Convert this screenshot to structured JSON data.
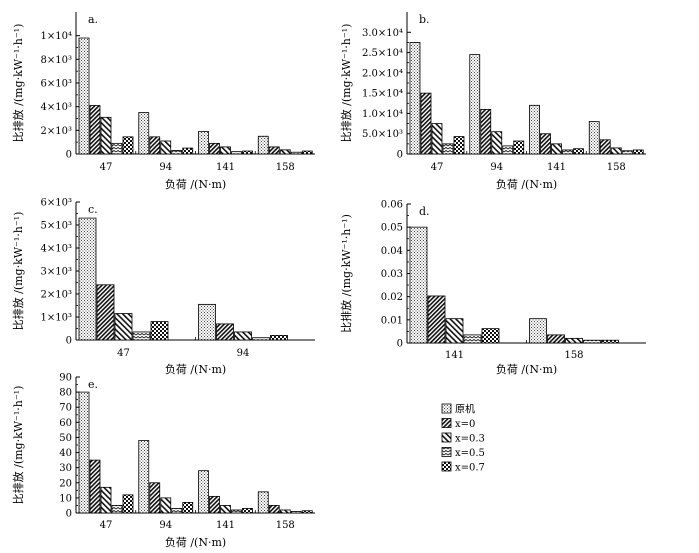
{
  "figure_title": "",
  "legend": {
    "entries": [
      "原机",
      "x=0",
      "x=0.3",
      "x=0.5",
      "x=0.7"
    ]
  },
  "chart_data": [
    {
      "type": "bar",
      "panel_label": "a.",
      "title": "",
      "xlabel": "负荷 /(N·m)",
      "ylabel": "比排放 /(mg·kW⁻¹·h⁻¹)",
      "categories": [
        "47",
        "94",
        "141",
        "158"
      ],
      "ylim": [
        0,
        12000
      ],
      "yticks": [
        0,
        2000,
        4000,
        6000,
        8000,
        10000
      ],
      "ytick_labels": [
        "0",
        "2×10³",
        "4×10³",
        "6×10³",
        "8×10³",
        "1×10⁴"
      ],
      "series": [
        {
          "name": "原机",
          "values": [
            9800,
            3500,
            1900,
            1500
          ]
        },
        {
          "name": "x=0",
          "values": [
            4100,
            1450,
            900,
            600
          ]
        },
        {
          "name": "x=0.3",
          "values": [
            3100,
            1100,
            600,
            350
          ]
        },
        {
          "name": "x=0.5",
          "values": [
            900,
            300,
            200,
            150
          ]
        },
        {
          "name": "x=0.7",
          "values": [
            1450,
            500,
            250,
            250
          ]
        }
      ]
    },
    {
      "type": "bar",
      "panel_label": "b.",
      "title": "",
      "xlabel": "负荷 /(N·m)",
      "ylabel": "比排放 /(mg·kW⁻¹·h⁻¹)",
      "categories": [
        "47",
        "94",
        "141",
        "158"
      ],
      "ylim": [
        0,
        35000
      ],
      "yticks": [
        0,
        5000,
        10000,
        15000,
        20000,
        25000,
        30000
      ],
      "ytick_labels": [
        "0",
        "5.0×10³",
        "1.0×10⁴",
        "1.5×10⁴",
        "2.0×10⁴",
        "2.5×10⁴",
        "3.0×10⁴"
      ],
      "series": [
        {
          "name": "原机",
          "values": [
            27500,
            24500,
            12000,
            8000
          ]
        },
        {
          "name": "x=0",
          "values": [
            15000,
            11000,
            5000,
            3500
          ]
        },
        {
          "name": "x=0.3",
          "values": [
            7500,
            5500,
            2500,
            1500
          ]
        },
        {
          "name": "x=0.5",
          "values": [
            2500,
            2000,
            1000,
            800
          ]
        },
        {
          "name": "x=0.7",
          "values": [
            4300,
            3200,
            1300,
            1000
          ]
        }
      ]
    },
    {
      "type": "bar",
      "panel_label": "c.",
      "title": "",
      "xlabel": "负荷 /(N·m)",
      "ylabel": "比排放 /(mg·kW⁻¹·h⁻¹)",
      "categories": [
        "47",
        "94"
      ],
      "ylim": [
        0,
        6000
      ],
      "yticks": [
        0,
        1000,
        2000,
        3000,
        4000,
        5000,
        6000
      ],
      "ytick_labels": [
        "0",
        "1×10³",
        "2×10³",
        "3×10³",
        "4×10³",
        "5×10³",
        "6×10³"
      ],
      "series": [
        {
          "name": "原机",
          "values": [
            5300,
            1550
          ]
        },
        {
          "name": "x=0",
          "values": [
            2400,
            700
          ]
        },
        {
          "name": "x=0.3",
          "values": [
            1150,
            350
          ]
        },
        {
          "name": "x=0.5",
          "values": [
            350,
            100
          ]
        },
        {
          "name": "x=0.7",
          "values": [
            800,
            200
          ]
        }
      ]
    },
    {
      "type": "bar",
      "panel_label": "d.",
      "title": "",
      "xlabel": "负荷 /(N·m)",
      "ylabel": "比排放 /(mg·kW⁻¹·h⁻¹)",
      "categories": [
        "141",
        "158"
      ],
      "ylim": [
        0,
        0.06
      ],
      "yticks": [
        0,
        0.01,
        0.02,
        0.03,
        0.04,
        0.05,
        0.06
      ],
      "ytick_labels": [
        "0",
        "0.01",
        "0.02",
        "0.03",
        "0.04",
        "0.05",
        "0.06"
      ],
      "series": [
        {
          "name": "原机",
          "values": [
            0.05,
            0.0105
          ]
        },
        {
          "name": "x=0",
          "values": [
            0.0203,
            0.0035
          ]
        },
        {
          "name": "x=0.3",
          "values": [
            0.0105,
            0.002
          ]
        },
        {
          "name": "x=0.5",
          "values": [
            0.0035,
            0.0012
          ]
        },
        {
          "name": "x=0.7",
          "values": [
            0.0062,
            0.0012
          ]
        }
      ]
    },
    {
      "type": "bar",
      "panel_label": "e.",
      "title": "",
      "xlabel": "负荷 /(N·m)",
      "ylabel": "比排放 /(mg·kW⁻¹·h⁻¹)",
      "categories": [
        "47",
        "94",
        "141",
        "158"
      ],
      "ylim": [
        0,
        90
      ],
      "yticks": [
        0,
        10,
        20,
        30,
        40,
        50,
        60,
        70,
        80,
        90
      ],
      "ytick_labels": [
        "0",
        "10",
        "20",
        "30",
        "40",
        "50",
        "60",
        "70",
        "80",
        "90"
      ],
      "series": [
        {
          "name": "原机",
          "values": [
            80,
            48,
            28,
            14
          ]
        },
        {
          "name": "x=0",
          "values": [
            35,
            20,
            11,
            5
          ]
        },
        {
          "name": "x=0.3",
          "values": [
            17,
            10,
            5,
            2
          ]
        },
        {
          "name": "x=0.5",
          "values": [
            5,
            3,
            2,
            1
          ]
        },
        {
          "name": "x=0.7",
          "values": [
            12,
            7,
            3,
            1.5
          ]
        }
      ]
    }
  ]
}
